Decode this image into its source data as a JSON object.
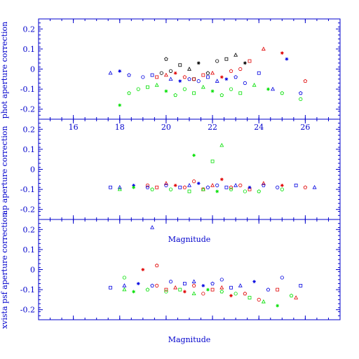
{
  "chart_data": [
    {
      "type": "scatter",
      "title": "",
      "xlabel": "",
      "ylabel": "phot aperture correction",
      "xlim": [
        14.5,
        27.5
      ],
      "ylim": [
        -0.25,
        0.25
      ],
      "xticks": [
        16,
        18,
        20,
        22,
        24,
        26
      ],
      "yticks": [
        -0.2,
        -0.1,
        0,
        0.1,
        0.2
      ],
      "ytick_labels": [
        "-0.2",
        "-0.1",
        "0",
        "0.1",
        "0.2"
      ],
      "xtick_labels": [
        "16",
        "18",
        "20",
        "22",
        "24",
        "26"
      ],
      "grid": false,
      "series": [
        {
          "color": "#000000",
          "points": [
            [
              20.2,
              -0.01
            ],
            [
              20.6,
              0.02
            ],
            [
              21.0,
              0.0
            ],
            [
              21.4,
              0.03
            ],
            [
              21.8,
              -0.02
            ],
            [
              22.2,
              0.04
            ],
            [
              22.6,
              0.05
            ],
            [
              23.0,
              0.07
            ],
            [
              23.4,
              0.03
            ],
            [
              20.0,
              0.05
            ],
            [
              19.8,
              -0.02
            ],
            [
              21.2,
              -0.05
            ]
          ]
        },
        {
          "color": "#e00000",
          "points": [
            [
              19.6,
              -0.04
            ],
            [
              20.0,
              -0.03
            ],
            [
              20.4,
              -0.02
            ],
            [
              20.8,
              -0.04
            ],
            [
              21.2,
              -0.05
            ],
            [
              21.6,
              -0.03
            ],
            [
              22.0,
              -0.02
            ],
            [
              22.4,
              -0.04
            ],
            [
              22.8,
              -0.01
            ],
            [
              23.2,
              0.0
            ],
            [
              23.6,
              0.04
            ],
            [
              24.2,
              0.1
            ],
            [
              25.0,
              0.08
            ],
            [
              26.0,
              -0.06
            ]
          ]
        },
        {
          "color": "#0000e0",
          "points": [
            [
              17.6,
              -0.02
            ],
            [
              18.0,
              -0.01
            ],
            [
              18.4,
              -0.03
            ],
            [
              19.0,
              -0.04
            ],
            [
              19.4,
              -0.03
            ],
            [
              20.2,
              -0.05
            ],
            [
              20.6,
              -0.06
            ],
            [
              21.0,
              -0.05
            ],
            [
              21.4,
              -0.06
            ],
            [
              21.8,
              -0.04
            ],
            [
              22.2,
              -0.06
            ],
            [
              22.6,
              -0.05
            ],
            [
              23.0,
              -0.04
            ],
            [
              23.4,
              -0.07
            ],
            [
              24.0,
              -0.02
            ],
            [
              24.6,
              -0.1
            ],
            [
              25.2,
              0.05
            ],
            [
              25.8,
              -0.12
            ]
          ]
        },
        {
          "color": "#00e000",
          "points": [
            [
              18.0,
              -0.18
            ],
            [
              18.4,
              -0.12
            ],
            [
              18.8,
              -0.1
            ],
            [
              19.2,
              -0.09
            ],
            [
              19.6,
              -0.08
            ],
            [
              20.0,
              -0.11
            ],
            [
              20.4,
              -0.13
            ],
            [
              20.8,
              -0.1
            ],
            [
              21.2,
              -0.12
            ],
            [
              21.6,
              -0.09
            ],
            [
              22.0,
              -0.11
            ],
            [
              22.4,
              -0.13
            ],
            [
              22.8,
              -0.1
            ],
            [
              23.2,
              -0.12
            ],
            [
              23.8,
              -0.08
            ],
            [
              24.4,
              -0.1
            ],
            [
              25.0,
              -0.12
            ],
            [
              25.8,
              -0.15
            ]
          ]
        }
      ]
    },
    {
      "type": "scatter",
      "title": "",
      "xlabel": "Magnitude",
      "ylabel": "ap aperture correction",
      "xlim": [
        14.5,
        27.5
      ],
      "ylim": [
        -0.25,
        0.25
      ],
      "xticks": [
        16,
        18,
        20,
        22,
        24,
        26
      ],
      "yticks": [
        -0.2,
        -0.1,
        0,
        0.1,
        0.2
      ],
      "ytick_labels": [
        "-0.2",
        "-0.1",
        "0",
        "0.1",
        "0.2"
      ],
      "xtick_labels": [],
      "grid": false,
      "series": [
        {
          "color": "#e00000",
          "points": [
            [
              19.2,
              -0.08
            ],
            [
              19.6,
              -0.09
            ],
            [
              20.0,
              -0.07
            ],
            [
              20.4,
              -0.08
            ],
            [
              20.8,
              -0.09
            ],
            [
              21.2,
              -0.06
            ],
            [
              21.6,
              -0.1
            ],
            [
              22.0,
              -0.08
            ],
            [
              22.4,
              -0.05
            ],
            [
              22.8,
              -0.09
            ],
            [
              23.2,
              -0.08
            ],
            [
              23.6,
              -0.1
            ],
            [
              24.2,
              -0.07
            ],
            [
              25.0,
              -0.08
            ],
            [
              26.0,
              -0.09
            ]
          ]
        },
        {
          "color": "#0000e0",
          "points": [
            [
              17.6,
              -0.09
            ],
            [
              18.0,
              -0.09
            ],
            [
              18.6,
              -0.08
            ],
            [
              19.2,
              -0.09
            ],
            [
              20.0,
              -0.08
            ],
            [
              20.6,
              -0.09
            ],
            [
              21.0,
              -0.08
            ],
            [
              21.4,
              -0.07
            ],
            [
              21.8,
              -0.09
            ],
            [
              22.2,
              -0.08
            ],
            [
              22.6,
              -0.09
            ],
            [
              23.0,
              -0.08
            ],
            [
              23.6,
              -0.09
            ],
            [
              24.2,
              -0.08
            ],
            [
              24.8,
              -0.09
            ],
            [
              25.6,
              -0.08
            ],
            [
              26.4,
              -0.09
            ]
          ]
        },
        {
          "color": "#00e000",
          "points": [
            [
              18.0,
              -0.1
            ],
            [
              18.6,
              -0.09
            ],
            [
              19.4,
              -0.1
            ],
            [
              20.2,
              -0.1
            ],
            [
              21.0,
              -0.11
            ],
            [
              21.6,
              -0.1
            ],
            [
              22.2,
              -0.11
            ],
            [
              22.8,
              -0.1
            ],
            [
              23.4,
              -0.11
            ],
            [
              22.0,
              0.04
            ],
            [
              22.4,
              0.12
            ],
            [
              21.2,
              0.07
            ],
            [
              24.0,
              -0.11
            ],
            [
              25.0,
              -0.1
            ]
          ]
        }
      ]
    },
    {
      "type": "scatter",
      "title": "",
      "xlabel": "Magnitude",
      "ylabel": "xvista psf aperture correction",
      "xlim": [
        14.5,
        27.5
      ],
      "ylim": [
        -0.25,
        0.25
      ],
      "xticks": [
        16,
        18,
        20,
        22,
        24,
        26
      ],
      "yticks": [
        -0.2,
        -0.1,
        0,
        0.1,
        0.2
      ],
      "ytick_labels": [
        "-0.2",
        "-0.1",
        "0",
        "0.1",
        "0.2"
      ],
      "xtick_labels": [],
      "grid": false,
      "series": [
        {
          "color": "#e00000",
          "points": [
            [
              19.6,
              -0.08
            ],
            [
              20.0,
              -0.1
            ],
            [
              20.4,
              -0.09
            ],
            [
              20.8,
              -0.11
            ],
            [
              21.2,
              -0.08
            ],
            [
              21.6,
              -0.12
            ],
            [
              22.0,
              -0.1
            ],
            [
              22.4,
              -0.09
            ],
            [
              22.8,
              -0.13
            ],
            [
              23.4,
              -0.12
            ],
            [
              24.0,
              -0.15
            ],
            [
              24.8,
              -0.1
            ],
            [
              25.6,
              -0.14
            ],
            [
              19.0,
              0.0
            ],
            [
              19.6,
              0.02
            ]
          ]
        },
        {
          "color": "#0000e0",
          "points": [
            [
              17.6,
              -0.09
            ],
            [
              18.2,
              -0.08
            ],
            [
              18.8,
              -0.07
            ],
            [
              19.4,
              -0.08
            ],
            [
              20.2,
              -0.06
            ],
            [
              20.8,
              -0.07
            ],
            [
              21.2,
              -0.06
            ],
            [
              21.6,
              -0.08
            ],
            [
              22.0,
              -0.07
            ],
            [
              22.4,
              -0.05
            ],
            [
              22.8,
              -0.09
            ],
            [
              23.2,
              -0.08
            ],
            [
              23.8,
              -0.06
            ],
            [
              24.4,
              -0.1
            ],
            [
              25.0,
              -0.04
            ],
            [
              25.8,
              -0.08
            ],
            [
              19.4,
              0.21
            ]
          ]
        },
        {
          "color": "#00e000",
          "points": [
            [
              18.2,
              -0.1
            ],
            [
              18.6,
              -0.11
            ],
            [
              19.2,
              -0.1
            ],
            [
              20.0,
              -0.11
            ],
            [
              20.6,
              -0.1
            ],
            [
              21.2,
              -0.12
            ],
            [
              21.8,
              -0.1
            ],
            [
              22.4,
              -0.11
            ],
            [
              23.0,
              -0.12
            ],
            [
              23.6,
              -0.14
            ],
            [
              24.2,
              -0.16
            ],
            [
              24.8,
              -0.18
            ],
            [
              25.4,
              -0.13
            ],
            [
              18.2,
              -0.04
            ]
          ]
        }
      ]
    }
  ],
  "panels": [
    {
      "ylabel": "phot aperture correction",
      "xlabel": ""
    },
    {
      "ylabel": "ap aperture correction",
      "xlabel": "Magnitude"
    },
    {
      "ylabel": "xvista psf aperture correction",
      "xlabel": "Magnitude"
    }
  ]
}
